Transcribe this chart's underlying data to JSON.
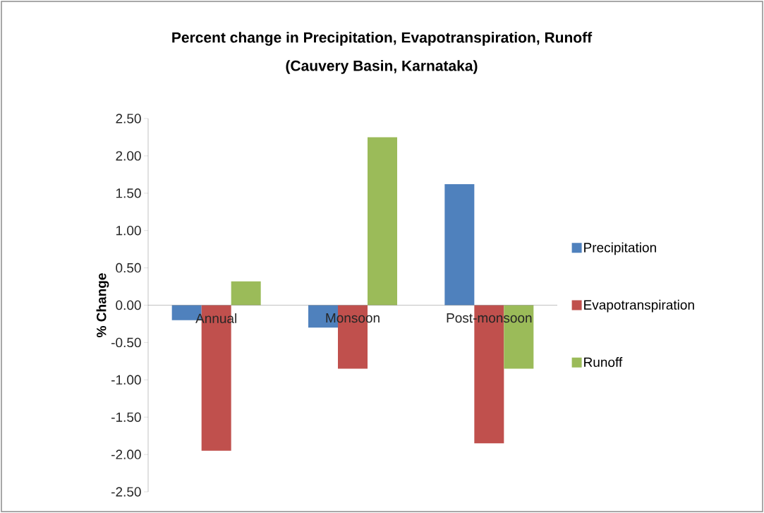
{
  "chart_data": {
    "type": "bar",
    "title": "Percent change in Precipitation, Evapotranspiration,  Runoff",
    "subtitle": "(Cauvery Basin, Karnataka)",
    "ylabel": "% Change",
    "categories": [
      "Annual",
      "Monsoon",
      "Post-monsoon"
    ],
    "series": [
      {
        "name": "Precipitation",
        "color": "#4f81bd",
        "values": [
          -0.2,
          -0.3,
          1.62
        ]
      },
      {
        "name": "Evapotranspiration",
        "color": "#c0504d",
        "values": [
          -1.95,
          -0.85,
          -1.85
        ]
      },
      {
        "name": "Runoff",
        "color": "#9bbb59",
        "values": [
          0.32,
          2.25,
          -0.85
        ]
      }
    ],
    "ylim": [
      -2.5,
      2.5
    ],
    "yticks": [
      {
        "value": -2.5,
        "label": "-2.50"
      },
      {
        "value": -2.0,
        "label": "-2.00"
      },
      {
        "value": -1.5,
        "label": "-1.50"
      },
      {
        "value": -1.0,
        "label": "-1.00"
      },
      {
        "value": -0.5,
        "label": "-0.50"
      },
      {
        "value": 0.0,
        "label": "0.00"
      },
      {
        "value": 0.5,
        "label": "0.50"
      },
      {
        "value": 1.0,
        "label": "1.00"
      },
      {
        "value": 1.5,
        "label": "1.50"
      },
      {
        "value": 2.0,
        "label": "2.00"
      },
      {
        "value": 2.5,
        "label": "2.50"
      }
    ],
    "legend": "right",
    "grid": false
  }
}
